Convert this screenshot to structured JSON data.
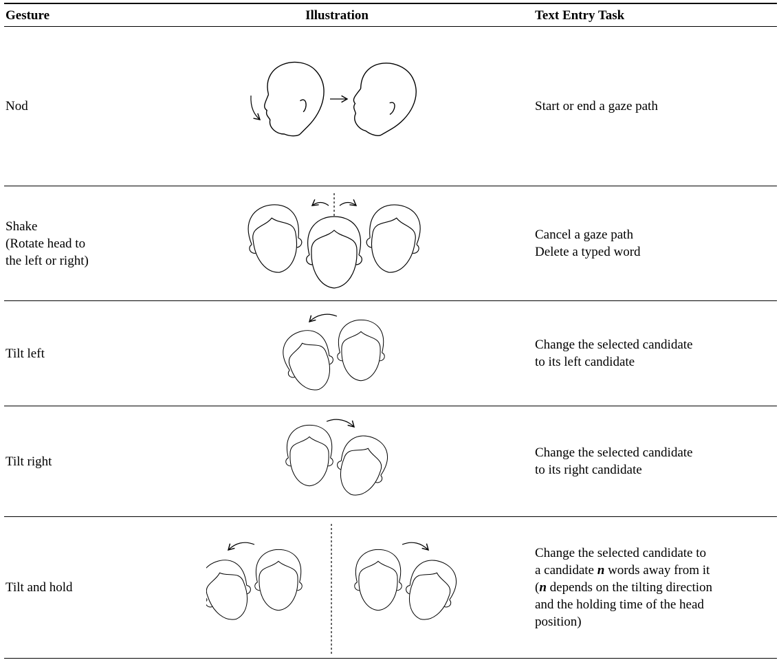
{
  "header": {
    "columns": [
      "Gesture",
      "Illustration",
      "Text Entry Task"
    ]
  },
  "table": {
    "rows": [
      {
        "gesture": [
          "Nod"
        ],
        "task": [
          [
            "Start or end a gaze path"
          ]
        ]
      },
      {
        "gesture": [
          "Shake",
          "(Rotate head to",
          "the left or right)"
        ],
        "task": [
          [
            "Cancel a gaze path"
          ],
          [
            "Delete a typed word"
          ]
        ]
      },
      {
        "gesture": [
          "Tilt left"
        ],
        "task": [
          [
            "Change the selected candidate"
          ],
          [
            "to its left candidate"
          ]
        ]
      },
      {
        "gesture": [
          "Tilt right"
        ],
        "task": [
          [
            "Change the selected candidate"
          ],
          [
            "to its right candidate"
          ]
        ]
      },
      {
        "gesture": [
          "Tilt and hold"
        ],
        "task": [
          [
            "Change the selected candidate to"
          ],
          [
            "a candidate ",
            "n",
            " words away from it"
          ],
          [
            "(",
            "n",
            " depends on the tilting direction"
          ],
          [
            "and the holding time of the head"
          ],
          [
            "position)"
          ]
        ]
      }
    ]
  }
}
